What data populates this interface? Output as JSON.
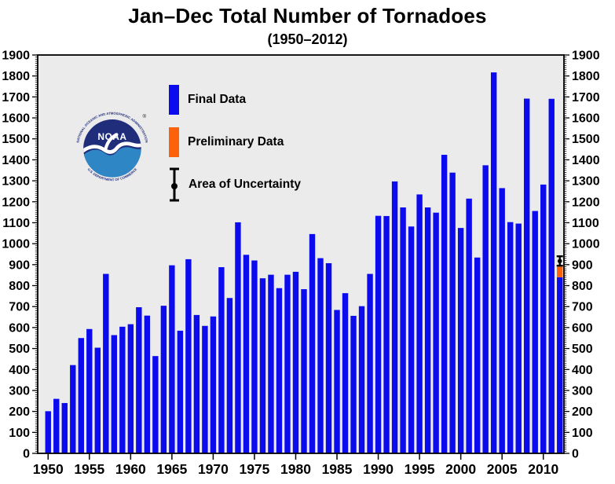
{
  "chart_data": {
    "type": "bar",
    "title": "Jan–Dec Total Number of Tornadoes",
    "subtitle": "(1950–2012)",
    "xlabel": "",
    "ylabel": "",
    "ylim": [
      0,
      1900
    ],
    "ytick_step": 100,
    "y_minor_step": 10,
    "grid": false,
    "legend_position": "upper-left-inside",
    "plot_background": "#ebebeb",
    "frame_color": "#000000",
    "yticks": [
      0,
      100,
      200,
      300,
      400,
      500,
      600,
      700,
      800,
      900,
      1000,
      1100,
      1200,
      1300,
      1400,
      1500,
      1600,
      1700,
      1800,
      1900
    ],
    "xticks": [
      1950,
      1955,
      1960,
      1965,
      1970,
      1975,
      1980,
      1985,
      1990,
      1995,
      2000,
      2005,
      2010
    ],
    "years": [
      1950,
      1951,
      1952,
      1953,
      1954,
      1955,
      1956,
      1957,
      1958,
      1959,
      1960,
      1961,
      1962,
      1963,
      1964,
      1965,
      1966,
      1967,
      1968,
      1969,
      1970,
      1971,
      1972,
      1973,
      1974,
      1975,
      1976,
      1977,
      1978,
      1979,
      1980,
      1981,
      1982,
      1983,
      1984,
      1985,
      1986,
      1987,
      1988,
      1989,
      1990,
      1991,
      1992,
      1993,
      1994,
      1995,
      1996,
      1997,
      1998,
      1999,
      2000,
      2001,
      2002,
      2003,
      2004,
      2005,
      2006,
      2007,
      2008,
      2009,
      2010,
      2011,
      2012
    ],
    "series": [
      {
        "name": "Final Data",
        "values": [
          201,
          260,
          240,
          421,
          550,
          593,
          504,
          856,
          564,
          604,
          616,
          697,
          657,
          464,
          704,
          897,
          585,
          926,
          660,
          608,
          653,
          888,
          741,
          1102,
          947,
          920,
          835,
          852,
          788,
          852,
          866,
          783,
          1046,
          931,
          907,
          684,
          764,
          656,
          702,
          856,
          1133,
          1132,
          1297,
          1173,
          1082,
          1235,
          1173,
          1148,
          1424,
          1339,
          1075,
          1215,
          934,
          1374,
          1817,
          1265,
          1103,
          1096,
          1692,
          1156,
          1282,
          1691,
          840
        ]
      }
    ],
    "preliminary_segment": {
      "year": 2012,
      "from": 840,
      "to": 890
    },
    "uncertainty_bar": {
      "year": 2012,
      "low": 895,
      "high": 940,
      "center": 917
    },
    "colors": {
      "final": "#0b0bee",
      "preliminary": "#fc6209",
      "uncertainty": "#000000",
      "axis": "#000000",
      "tick_label": "#000000"
    }
  },
  "legend": {
    "items": [
      {
        "label": "Final Data",
        "swatch": "final",
        "type": "bar"
      },
      {
        "label": "Preliminary Data",
        "swatch": "preliminary",
        "type": "bar"
      },
      {
        "label": "Area of Uncertainty",
        "swatch": "uncertainty",
        "type": "errorbar"
      }
    ]
  },
  "noaa_logo": {
    "acronym": "NOAA",
    "ring_text_top": "NATIONAL OCEANIC AND ATMOSPHERIC ADMINISTRATION",
    "ring_text_bottom": "U.S. DEPARTMENT OF COMMERCE",
    "registered_mark": "®",
    "colors": {
      "navy": "#1f2d7b",
      "light_blue": "#2e86c4",
      "ring_text": "#26327e"
    }
  }
}
